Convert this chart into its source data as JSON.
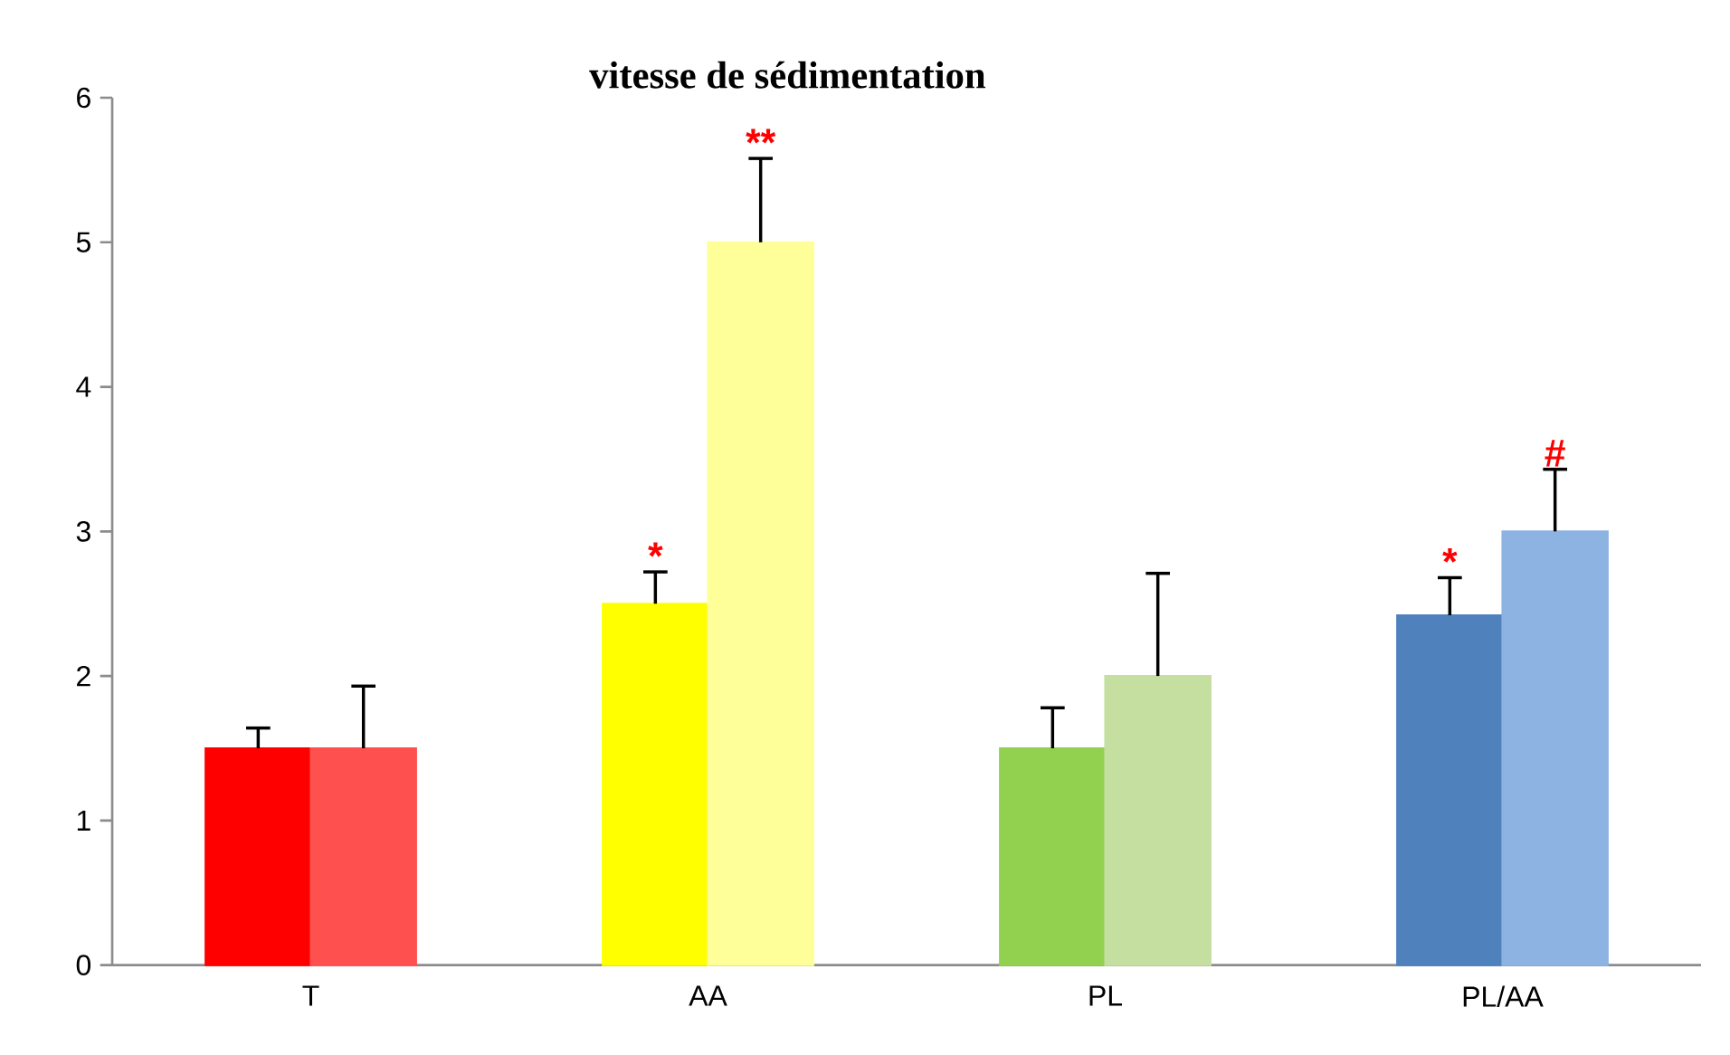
{
  "chart_data": {
    "type": "bar",
    "title": "vitesse de sédimentation",
    "categories": [
      "T",
      "AA",
      "PL",
      "PL/AA"
    ],
    "series": [
      {
        "colors": [
          "#ff0000",
          "#ffff00",
          "#92d050",
          "#4f81bd"
        ],
        "values": [
          1.5,
          2.5,
          1.5,
          2.42
        ],
        "errors": [
          [
            1.5,
            1.64
          ],
          [
            2.5,
            2.72
          ],
          [
            1.5,
            1.78
          ],
          [
            2.42,
            2.68
          ]
        ]
      },
      {
        "colors": [
          "#ff5050",
          "#ffff99",
          "#c4dfa0",
          "#8db3e2"
        ],
        "values": [
          1.5,
          5.0,
          2.0,
          3.0
        ],
        "errors": [
          [
            1.5,
            1.93
          ],
          [
            5.0,
            5.58
          ],
          [
            2.0,
            2.71
          ],
          [
            3.0,
            3.43
          ]
        ]
      }
    ],
    "ylim": [
      0,
      6
    ],
    "yticks": [
      0,
      1,
      2,
      3,
      4,
      5,
      6
    ],
    "grid": false,
    "annotations": [
      {
        "text": "*",
        "x": "AA",
        "y": 2.72
      },
      "**",
      {
        "text": "*",
        "x": "PL/AA",
        "y": 2.68
      },
      "#"
    ]
  }
}
